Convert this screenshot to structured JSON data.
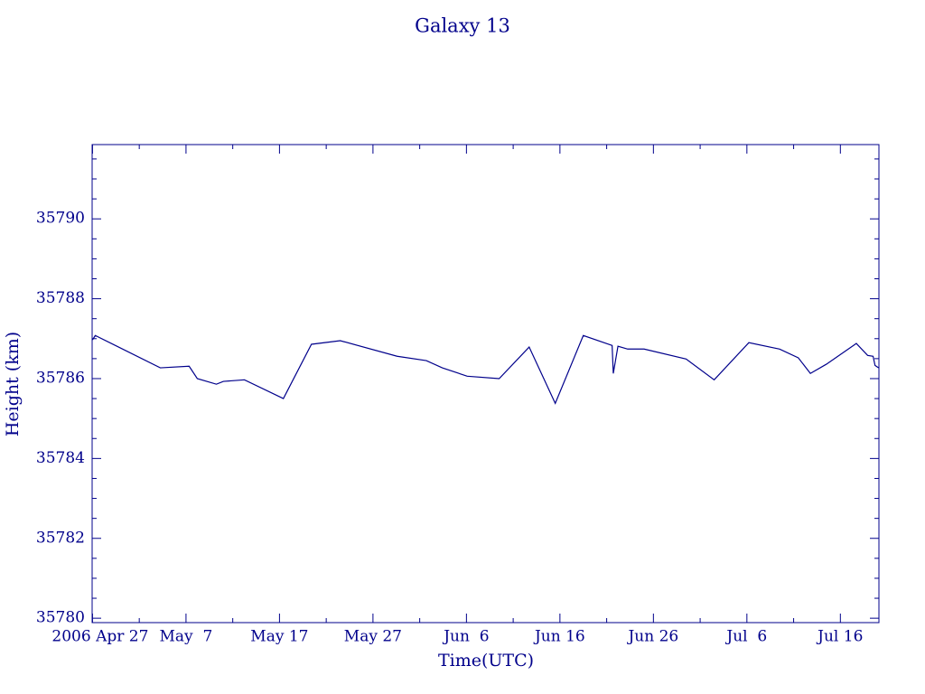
{
  "chart_data": {
    "type": "line",
    "title": "Galaxy 13",
    "xlabel": "Time(UTC)",
    "ylabel": "Height (km)",
    "color": "#00008b",
    "x": [
      "2006-04-27T00:00",
      "2006-04-27T07:00",
      "2006-05-04T06:00",
      "2006-05-07T08:00",
      "2006-05-08T05:00",
      "2006-05-10T06:00",
      "2006-05-11T00:00",
      "2006-05-13T06:00",
      "2006-05-17T10:00",
      "2006-05-20T10:00",
      "2006-05-23T12:00",
      "2006-05-29T14:00",
      "2006-06-01T17:00",
      "2006-06-03T10:00",
      "2006-06-06T02:00",
      "2006-06-09T12:00",
      "2006-06-12T17:00",
      "2006-06-15T12:00",
      "2006-06-18T12:00",
      "2006-06-21T14:00",
      "2006-06-21T17:00",
      "2006-06-22T05:00",
      "2006-06-23T06:00",
      "2006-06-25T00:00",
      "2006-06-29T12:00",
      "2006-07-02T12:00",
      "2006-07-06T05:00",
      "2006-07-09T12:00",
      "2006-07-11T12:00",
      "2006-07-12T19:00",
      "2006-07-14T12:00",
      "2006-07-17T17:00",
      "2006-07-18T22:00",
      "2006-07-19T12:00",
      "2006-07-19T17:00",
      "2006-07-20T02:00"
    ],
    "values": [
      35786.97,
      35787.08,
      35786.27,
      35786.31,
      35786.0,
      35785.86,
      35785.93,
      35785.97,
      35785.5,
      35786.86,
      35786.95,
      35786.56,
      35786.45,
      35786.27,
      35786.06,
      35786.0,
      35786.79,
      35785.38,
      35787.08,
      35786.83,
      35786.13,
      35786.81,
      35786.74,
      35786.74,
      35786.49,
      35785.97,
      35786.9,
      35786.74,
      35786.52,
      35786.13,
      35786.36,
      35786.88,
      35786.58,
      35786.56,
      35786.33,
      35786.27
    ],
    "xlim": [
      "2006-04-26T23:00",
      "2006-07-20T03:00"
    ],
    "xticks": [
      {
        "value": "2006-04-27T00:00",
        "label": "2006 Apr 27"
      },
      {
        "value": "2006-05-07T00:00",
        "label": "May  7"
      },
      {
        "value": "2006-05-17T00:00",
        "label": "May 17"
      },
      {
        "value": "2006-05-27T00:00",
        "label": "May 27"
      },
      {
        "value": "2006-06-06T00:00",
        "label": "Jun  6"
      },
      {
        "value": "2006-06-16T00:00",
        "label": "Jun 16"
      },
      {
        "value": "2006-06-26T00:00",
        "label": "Jun 26"
      },
      {
        "value": "2006-07-06T00:00",
        "label": "Jul  6"
      },
      {
        "value": "2006-07-16T00:00",
        "label": "Jul 16"
      }
    ],
    "xminorticks": [
      "2006-05-02T00:00",
      "2006-05-12T00:00",
      "2006-05-22T00:00",
      "2006-06-01T00:00",
      "2006-06-11T00:00",
      "2006-06-21T00:00",
      "2006-07-01T00:00",
      "2006-07-11T00:00"
    ],
    "ylim": [
      35779.89,
      35791.86
    ],
    "yticks": [
      35780,
      35782,
      35784,
      35786,
      35788,
      35790
    ],
    "yminorticks": [
      35780.5,
      35781,
      35781.5,
      35782.5,
      35783,
      35783.5,
      35784.5,
      35785,
      35785.5,
      35786.5,
      35787,
      35787.5,
      35788.5,
      35789,
      35789.5,
      35790.5,
      35791,
      35791.5
    ]
  }
}
